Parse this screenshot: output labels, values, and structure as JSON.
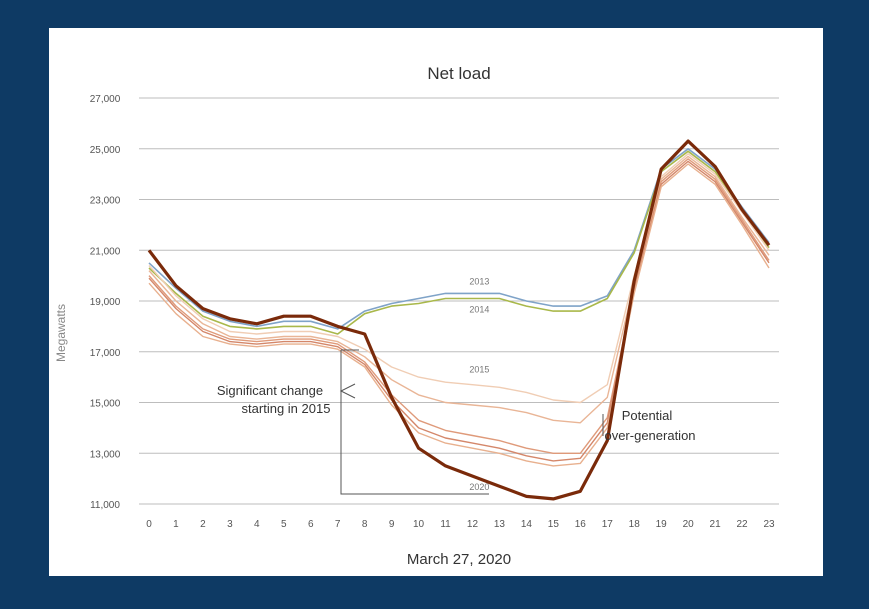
{
  "chart_data": {
    "type": "line",
    "title": "Net load",
    "xlabel": "March 27, 2020",
    "ylabel": "Megawatts",
    "ylim": [
      11000,
      27000
    ],
    "yticks": [
      "27,000",
      "25,000",
      "23,000",
      "21,000",
      "19,000",
      "17,000",
      "15,000",
      "13,000",
      "11,000"
    ],
    "ytick_values": [
      27000,
      25000,
      23000,
      21000,
      19000,
      17000,
      15000,
      13000,
      11000
    ],
    "x": [
      0,
      1,
      2,
      3,
      4,
      5,
      6,
      7,
      8,
      9,
      10,
      11,
      12,
      13,
      14,
      15,
      16,
      17,
      18,
      19,
      20,
      21,
      22,
      23
    ],
    "grid": true,
    "series": [
      {
        "name": "2013",
        "color": "#7fa3c8",
        "width": 1.6,
        "values": [
          20500,
          19500,
          18600,
          18200,
          18000,
          18200,
          18200,
          17900,
          18600,
          18900,
          19100,
          19300,
          19300,
          19300,
          19000,
          18800,
          18800,
          19200,
          21000,
          24200,
          25000,
          24200,
          22700,
          21300
        ]
      },
      {
        "name": "2014",
        "color": "#a9b84a",
        "width": 1.6,
        "values": [
          20300,
          19300,
          18400,
          18000,
          17900,
          18000,
          18000,
          17700,
          18500,
          18800,
          18900,
          19100,
          19100,
          19100,
          18800,
          18600,
          18600,
          19100,
          20900,
          24100,
          24900,
          24100,
          22600,
          21100
        ]
      },
      {
        "name": "2015",
        "color": "#f0cdb4",
        "width": 1.4,
        "values": [
          20400,
          19200,
          18300,
          17800,
          17700,
          17800,
          17800,
          17600,
          17100,
          16400,
          16000,
          15800,
          15700,
          15600,
          15400,
          15100,
          15000,
          15700,
          20000,
          23900,
          24800,
          24000,
          22500,
          21000
        ]
      },
      {
        "name": "",
        "color": "#e9b596",
        "width": 1.4,
        "values": [
          20200,
          19000,
          18100,
          17600,
          17500,
          17600,
          17600,
          17400,
          16800,
          15900,
          15300,
          15000,
          14900,
          14800,
          14600,
          14300,
          14200,
          15200,
          19700,
          23800,
          24700,
          23900,
          22300,
          20800
        ]
      },
      {
        "name": "",
        "color": "#df9a7a",
        "width": 1.4,
        "values": [
          20000,
          18800,
          17900,
          17500,
          17400,
          17500,
          17500,
          17300,
          16600,
          15300,
          14300,
          13900,
          13700,
          13500,
          13200,
          13000,
          13000,
          14400,
          19500,
          23700,
          24600,
          23800,
          22200,
          20600
        ]
      },
      {
        "name": "",
        "color": "#d4876a",
        "width": 1.4,
        "values": [
          19900,
          18700,
          17800,
          17400,
          17300,
          17400,
          17400,
          17200,
          16500,
          15100,
          14000,
          13600,
          13400,
          13200,
          12900,
          12700,
          12800,
          14200,
          19400,
          23600,
          24500,
          23700,
          22100,
          20500
        ]
      },
      {
        "name": "",
        "color": "#e8b08e",
        "width": 1.4,
        "values": [
          19700,
          18500,
          17600,
          17300,
          17200,
          17300,
          17300,
          17100,
          16400,
          14900,
          13800,
          13400,
          13200,
          13000,
          12700,
          12500,
          12600,
          14000,
          19300,
          23500,
          24400,
          23600,
          22000,
          20300
        ]
      },
      {
        "name": "2020",
        "color": "#7a2a0a",
        "width": 3.2,
        "values": [
          21000,
          19600,
          18700,
          18300,
          18100,
          18400,
          18400,
          18000,
          17700,
          15200,
          13200,
          12500,
          12100,
          11700,
          11300,
          11200,
          11500,
          13500,
          19800,
          24200,
          25300,
          24300,
          22600,
          21200
        ]
      }
    ],
    "annotations": [
      {
        "text": "Significant change",
        "line2": "starting in 2015"
      },
      {
        "text": "Potential",
        "line2": "over-generation"
      }
    ]
  }
}
